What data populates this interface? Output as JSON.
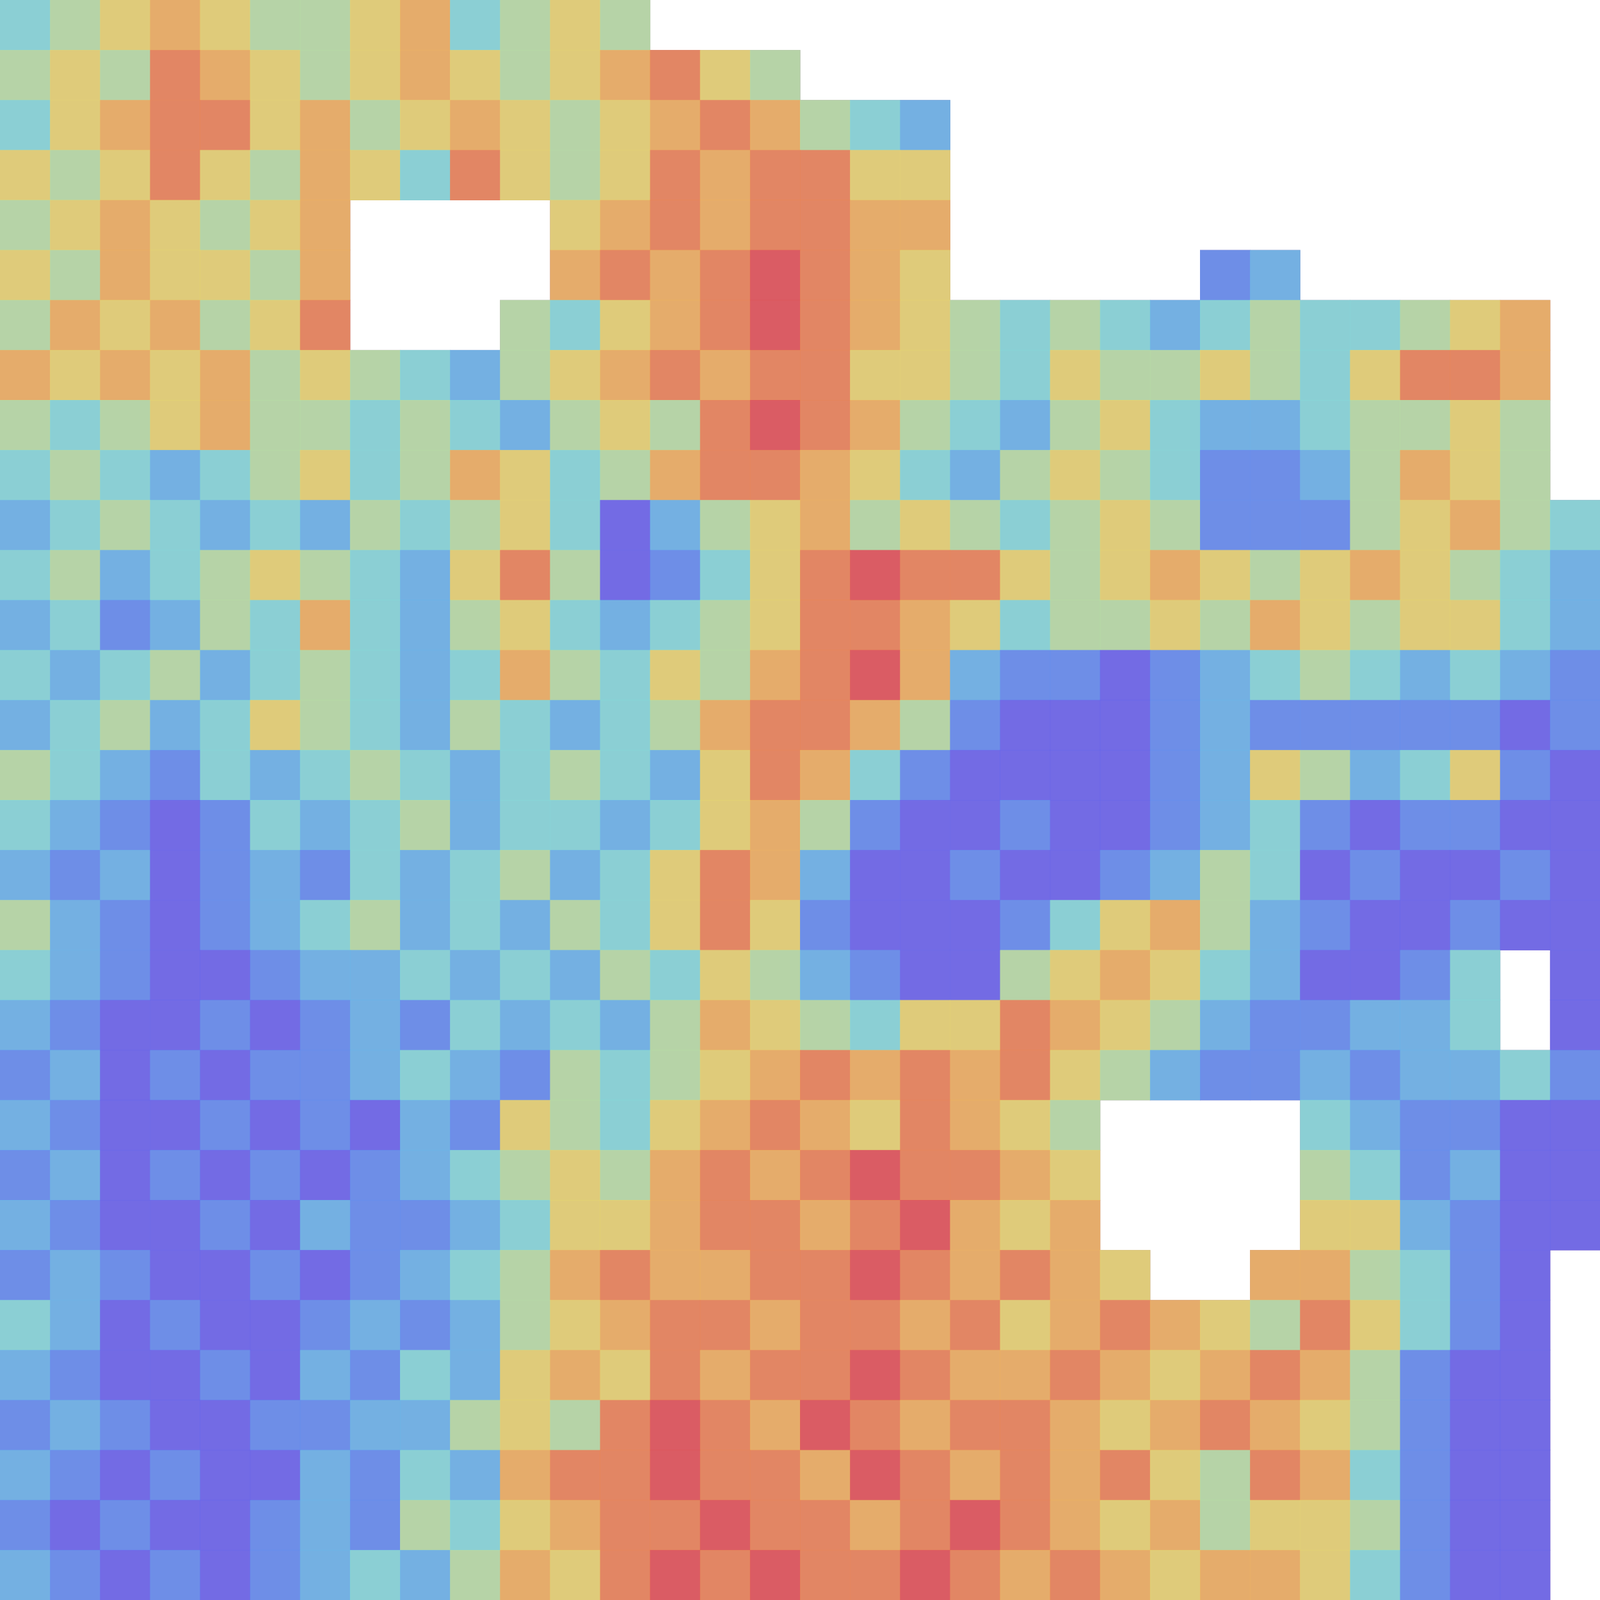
{
  "chart_data": {
    "type": "heatmap",
    "tick_labels": false,
    "cells": [
      [
        4,
        5,
        6,
        7,
        6,
        5,
        5,
        6,
        7,
        4,
        5,
        6,
        5,
        null,
        null,
        null,
        null,
        null,
        null,
        null,
        null,
        null,
        null,
        null,
        null,
        null,
        null,
        null,
        null,
        null,
        null,
        null
      ],
      [
        5,
        6,
        5,
        8,
        7,
        6,
        5,
        6,
        7,
        6,
        5,
        6,
        7,
        8,
        6,
        5,
        null,
        null,
        null,
        null,
        null,
        null,
        null,
        null,
        null,
        null,
        null,
        null,
        null,
        null,
        null,
        null
      ],
      [
        4,
        6,
        7,
        8,
        8,
        6,
        7,
        5,
        6,
        7,
        6,
        5,
        6,
        7,
        8,
        7,
        5,
        4,
        3,
        null,
        null,
        null,
        null,
        null,
        null,
        null,
        null,
        null,
        null,
        null,
        null,
        null
      ],
      [
        6,
        5,
        6,
        8,
        6,
        5,
        7,
        6,
        4,
        8,
        6,
        5,
        6,
        8,
        7,
        8,
        8,
        6,
        6,
        null,
        null,
        null,
        null,
        null,
        null,
        null,
        null,
        null,
        null,
        null,
        null,
        null
      ],
      [
        5,
        6,
        7,
        6,
        5,
        6,
        7,
        null,
        null,
        null,
        null,
        6,
        7,
        8,
        7,
        8,
        8,
        7,
        7,
        null,
        null,
        null,
        null,
        null,
        null,
        null,
        null,
        null,
        null,
        null,
        null,
        null
      ],
      [
        6,
        5,
        7,
        6,
        6,
        5,
        7,
        null,
        null,
        null,
        null,
        7,
        8,
        7,
        8,
        9,
        8,
        7,
        6,
        null,
        null,
        null,
        null,
        null,
        2,
        3,
        null,
        null,
        null,
        null,
        null,
        null
      ],
      [
        5,
        7,
        6,
        7,
        5,
        6,
        8,
        null,
        null,
        null,
        5,
        4,
        6,
        7,
        8,
        9,
        8,
        7,
        6,
        5,
        4,
        5,
        4,
        3,
        4,
        5,
        4,
        4,
        5,
        6,
        7,
        null
      ],
      [
        7,
        6,
        7,
        6,
        7,
        5,
        6,
        5,
        4,
        3,
        5,
        6,
        7,
        8,
        7,
        8,
        8,
        6,
        6,
        5,
        4,
        6,
        5,
        5,
        6,
        5,
        4,
        6,
        8,
        8,
        7,
        null
      ],
      [
        5,
        4,
        5,
        6,
        7,
        5,
        5,
        4,
        5,
        4,
        3,
        5,
        6,
        5,
        8,
        9,
        8,
        7,
        5,
        4,
        3,
        5,
        6,
        4,
        3,
        3,
        4,
        5,
        5,
        6,
        5,
        null
      ],
      [
        4,
        5,
        4,
        3,
        4,
        5,
        6,
        4,
        5,
        7,
        6,
        4,
        5,
        7,
        8,
        8,
        7,
        6,
        4,
        3,
        5,
        6,
        5,
        4,
        2,
        2,
        3,
        5,
        7,
        6,
        5,
        null
      ],
      [
        3,
        4,
        5,
        4,
        3,
        4,
        3,
        5,
        4,
        5,
        6,
        4,
        1,
        3,
        5,
        6,
        7,
        5,
        6,
        5,
        4,
        5,
        6,
        5,
        2,
        2,
        2,
        5,
        6,
        7,
        5,
        4
      ],
      [
        4,
        5,
        3,
        4,
        5,
        6,
        5,
        4,
        3,
        6,
        8,
        5,
        1,
        2,
        4,
        6,
        8,
        9,
        8,
        8,
        6,
        5,
        6,
        7,
        6,
        5,
        6,
        7,
        6,
        5,
        4,
        3
      ],
      [
        3,
        4,
        2,
        3,
        5,
        4,
        7,
        4,
        3,
        5,
        6,
        4,
        3,
        4,
        5,
        6,
        8,
        8,
        7,
        6,
        4,
        5,
        5,
        6,
        5,
        7,
        6,
        5,
        6,
        6,
        4,
        3
      ],
      [
        4,
        3,
        4,
        5,
        3,
        4,
        5,
        4,
        3,
        4,
        7,
        5,
        4,
        6,
        5,
        7,
        8,
        9,
        7,
        3,
        2,
        2,
        1,
        2,
        3,
        4,
        5,
        4,
        3,
        4,
        3,
        2
      ],
      [
        3,
        4,
        5,
        3,
        4,
        6,
        5,
        4,
        3,
        5,
        4,
        3,
        4,
        5,
        7,
        8,
        8,
        7,
        5,
        2,
        1,
        1,
        1,
        2,
        3,
        2,
        2,
        2,
        2,
        2,
        1,
        2
      ],
      [
        5,
        4,
        3,
        2,
        4,
        3,
        4,
        5,
        4,
        3,
        4,
        5,
        4,
        3,
        6,
        8,
        7,
        4,
        2,
        1,
        1,
        1,
        1,
        2,
        3,
        6,
        5,
        3,
        4,
        6,
        2,
        1
      ],
      [
        4,
        3,
        2,
        1,
        2,
        4,
        3,
        4,
        5,
        3,
        4,
        4,
        3,
        4,
        6,
        7,
        5,
        2,
        1,
        1,
        2,
        1,
        1,
        2,
        3,
        4,
        2,
        1,
        2,
        2,
        1,
        1
      ],
      [
        3,
        2,
        3,
        1,
        2,
        3,
        2,
        4,
        3,
        4,
        5,
        3,
        4,
        6,
        8,
        7,
        3,
        1,
        1,
        2,
        1,
        1,
        2,
        3,
        5,
        4,
        1,
        2,
        1,
        1,
        2,
        1
      ],
      [
        5,
        3,
        2,
        1,
        2,
        3,
        4,
        5,
        3,
        4,
        3,
        5,
        4,
        6,
        8,
        6,
        2,
        1,
        1,
        1,
        2,
        4,
        6,
        7,
        5,
        3,
        2,
        1,
        1,
        2,
        1,
        1
      ],
      [
        4,
        3,
        2,
        1,
        1,
        2,
        3,
        3,
        4,
        3,
        4,
        3,
        5,
        4,
        6,
        5,
        3,
        2,
        1,
        1,
        5,
        6,
        7,
        6,
        4,
        3,
        1,
        1,
        2,
        4,
        null,
        1
      ],
      [
        3,
        2,
        1,
        1,
        2,
        1,
        2,
        3,
        2,
        4,
        3,
        4,
        3,
        5,
        7,
        6,
        5,
        4,
        6,
        6,
        8,
        7,
        6,
        5,
        3,
        2,
        2,
        3,
        3,
        4,
        null,
        1
      ],
      [
        2,
        3,
        1,
        2,
        1,
        2,
        2,
        3,
        4,
        3,
        2,
        5,
        4,
        5,
        6,
        7,
        8,
        7,
        8,
        7,
        8,
        6,
        5,
        3,
        2,
        2,
        3,
        2,
        3,
        3,
        4,
        2
      ],
      [
        3,
        2,
        1,
        1,
        2,
        1,
        2,
        1,
        3,
        2,
        6,
        5,
        4,
        6,
        7,
        8,
        7,
        6,
        8,
        7,
        6,
        5,
        null,
        null,
        null,
        null,
        4,
        3,
        2,
        2,
        1,
        1
      ],
      [
        2,
        3,
        1,
        2,
        1,
        2,
        1,
        2,
        3,
        4,
        5,
        6,
        5,
        7,
        8,
        7,
        8,
        9,
        8,
        8,
        7,
        6,
        null,
        null,
        null,
        null,
        5,
        4,
        2,
        3,
        1,
        1
      ],
      [
        3,
        2,
        1,
        1,
        2,
        1,
        3,
        2,
        2,
        3,
        4,
        6,
        6,
        7,
        8,
        8,
        7,
        8,
        9,
        7,
        6,
        7,
        null,
        null,
        null,
        null,
        6,
        6,
        3,
        2,
        1,
        1
      ],
      [
        2,
        3,
        2,
        1,
        1,
        2,
        1,
        2,
        3,
        4,
        5,
        7,
        8,
        7,
        7,
        8,
        8,
        9,
        8,
        7,
        8,
        7,
        6,
        null,
        null,
        7,
        7,
        5,
        4,
        2,
        1,
        null
      ],
      [
        4,
        3,
        1,
        2,
        1,
        1,
        2,
        3,
        2,
        3,
        5,
        6,
        7,
        8,
        8,
        7,
        8,
        8,
        7,
        8,
        6,
        7,
        8,
        7,
        6,
        5,
        8,
        6,
        4,
        2,
        1,
        null
      ],
      [
        3,
        2,
        1,
        1,
        2,
        1,
        3,
        2,
        4,
        3,
        6,
        7,
        6,
        8,
        7,
        8,
        8,
        9,
        8,
        7,
        7,
        8,
        7,
        6,
        7,
        8,
        7,
        5,
        2,
        1,
        1,
        null
      ],
      [
        2,
        3,
        2,
        1,
        1,
        2,
        2,
        3,
        3,
        5,
        6,
        5,
        8,
        9,
        8,
        7,
        9,
        8,
        7,
        8,
        8,
        7,
        6,
        7,
        8,
        7,
        6,
        5,
        2,
        1,
        1,
        null
      ],
      [
        3,
        2,
        1,
        2,
        1,
        1,
        3,
        2,
        4,
        3,
        7,
        8,
        8,
        9,
        8,
        8,
        7,
        9,
        8,
        7,
        8,
        7,
        8,
        6,
        5,
        8,
        7,
        4,
        2,
        1,
        1,
        null
      ],
      [
        2,
        1,
        2,
        1,
        1,
        2,
        3,
        2,
        5,
        4,
        6,
        7,
        8,
        8,
        9,
        8,
        8,
        7,
        8,
        9,
        8,
        7,
        6,
        7,
        5,
        6,
        6,
        5,
        2,
        1,
        1,
        null
      ],
      [
        3,
        2,
        1,
        2,
        1,
        2,
        3,
        4,
        3,
        5,
        7,
        6,
        8,
        9,
        8,
        9,
        8,
        8,
        9,
        8,
        7,
        8,
        7,
        6,
        7,
        7,
        6,
        4,
        2,
        1,
        1,
        null
      ]
    ]
  }
}
